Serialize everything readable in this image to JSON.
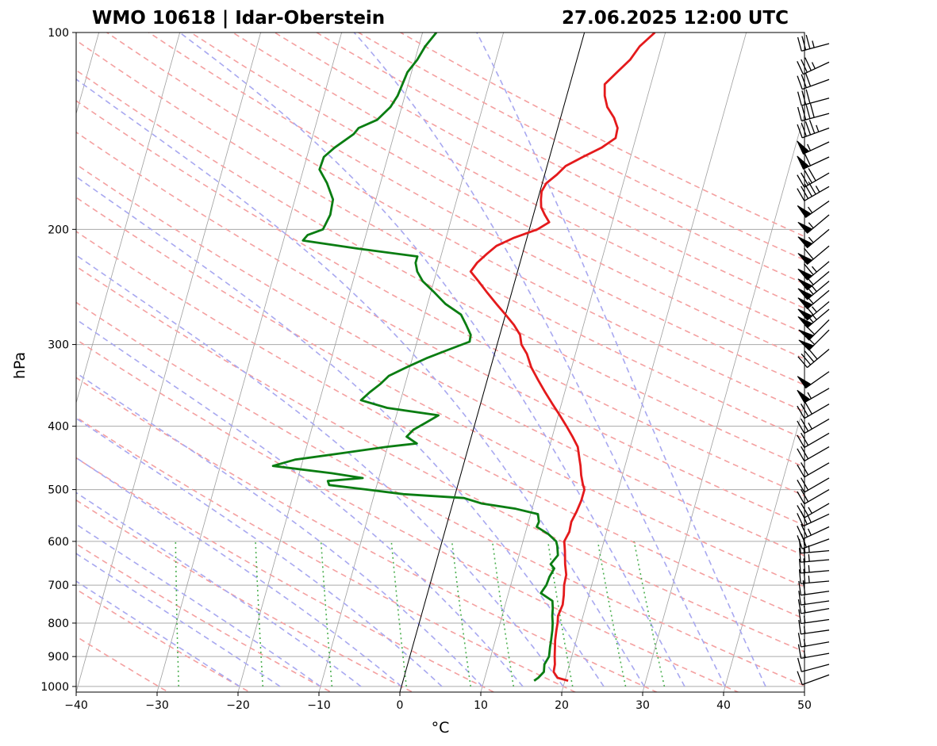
{
  "title_left": "WMO 10618 | Idar-Oberstein",
  "title_right": "27.06.2025 12:00 UTC",
  "colors": {
    "temperature": "#e41a1c",
    "dewpoint": "#0a7d12",
    "dry_adiabats": "#f4a0a0",
    "moist_adiabats": "#a8a8f0",
    "mixing_ratio": "#4caf50",
    "isotherms": "#9e9e9e",
    "isobars": "#aaaaaa",
    "wind_barbs": "#000000"
  },
  "chart_data": {
    "type": "line",
    "diagram": "skew-T log-p",
    "xlabel": "°C",
    "ylabel": "hPa",
    "xlim": [
      -40,
      50
    ],
    "ylim": [
      1020,
      100
    ],
    "y_scale": "log",
    "x_ticks": [
      -40,
      -30,
      -20,
      -10,
      0,
      10,
      20,
      30,
      40,
      50
    ],
    "y_ticks": [
      100,
      200,
      300,
      400,
      500,
      600,
      700,
      800,
      900,
      1000
    ],
    "series": [
      {
        "key": "temperature",
        "points": [
          [
            980,
            20.4
          ],
          [
            970,
            19.0
          ],
          [
            950,
            18.3
          ],
          [
            925,
            18.2
          ],
          [
            900,
            17.9
          ],
          [
            870,
            17.6
          ],
          [
            850,
            17.4
          ],
          [
            820,
            17.2
          ],
          [
            800,
            17.1
          ],
          [
            780,
            16.9
          ],
          [
            750,
            17.1
          ],
          [
            725,
            16.9
          ],
          [
            700,
            16.6
          ],
          [
            675,
            16.5
          ],
          [
            650,
            16.0
          ],
          [
            620,
            15.5
          ],
          [
            600,
            15.1
          ],
          [
            580,
            15.4
          ],
          [
            560,
            15.3
          ],
          [
            540,
            15.6
          ],
          [
            520,
            15.8
          ],
          [
            500,
            15.8
          ],
          [
            490,
            15.4
          ],
          [
            475,
            14.9
          ],
          [
            460,
            14.5
          ],
          [
            445,
            14.0
          ],
          [
            430,
            13.5
          ],
          [
            415,
            12.5
          ],
          [
            400,
            11.4
          ],
          [
            385,
            10.2
          ],
          [
            370,
            8.9
          ],
          [
            355,
            7.6
          ],
          [
            340,
            6.3
          ],
          [
            325,
            5.0
          ],
          [
            310,
            4.0
          ],
          [
            300,
            3.0
          ],
          [
            290,
            2.5
          ],
          [
            280,
            1.4
          ],
          [
            270,
            0.0
          ],
          [
            260,
            -1.5
          ],
          [
            250,
            -3.0
          ],
          [
            240,
            -4.5
          ],
          [
            232,
            -5.8
          ],
          [
            225,
            -5.3
          ],
          [
            218,
            -4.4
          ],
          [
            212,
            -3.5
          ],
          [
            206,
            -1.6
          ],
          [
            200,
            1.0
          ],
          [
            195,
            2.2
          ],
          [
            190,
            1.4
          ],
          [
            185,
            0.7
          ],
          [
            180,
            0.4
          ],
          [
            175,
            0.2
          ],
          [
            170,
            0.5
          ],
          [
            165,
            1.5
          ],
          [
            160,
            2.3
          ],
          [
            155,
            4.1
          ],
          [
            150,
            6.1
          ],
          [
            145,
            7.5
          ],
          [
            140,
            7.4
          ],
          [
            135,
            6.6
          ],
          [
            130,
            5.4
          ],
          [
            125,
            4.7
          ],
          [
            120,
            4.3
          ],
          [
            115,
            5.4
          ],
          [
            110,
            6.6
          ],
          [
            105,
            7.3
          ],
          [
            100,
            8.7
          ]
        ]
      },
      {
        "key": "dewpoint",
        "points": [
          [
            980,
            16.2
          ],
          [
            970,
            16.6
          ],
          [
            950,
            17.1
          ],
          [
            925,
            16.9
          ],
          [
            900,
            17.2
          ],
          [
            870,
            17.0
          ],
          [
            850,
            16.9
          ],
          [
            820,
            16.7
          ],
          [
            800,
            16.5
          ],
          [
            780,
            16.2
          ],
          [
            760,
            16.0
          ],
          [
            740,
            15.7
          ],
          [
            720,
            14.0
          ],
          [
            700,
            14.4
          ],
          [
            680,
            14.5
          ],
          [
            660,
            14.8
          ],
          [
            650,
            14.2
          ],
          [
            630,
            14.8
          ],
          [
            610,
            14.4
          ],
          [
            600,
            14.1
          ],
          [
            585,
            12.9
          ],
          [
            570,
            11.2
          ],
          [
            560,
            11.3
          ],
          [
            545,
            10.9
          ],
          [
            535,
            8.0
          ],
          [
            525,
            3.6
          ],
          [
            515,
            1.2
          ],
          [
            508,
            -6.4
          ],
          [
            500,
            -11.0
          ],
          [
            492,
            -15.9
          ],
          [
            485,
            -16.2
          ],
          [
            480,
            -12.0
          ],
          [
            472,
            -16.0
          ],
          [
            460,
            -23.5
          ],
          [
            450,
            -21.0
          ],
          [
            440,
            -15.5
          ],
          [
            430,
            -10.1
          ],
          [
            425,
            -6.5
          ],
          [
            415,
            -8.0
          ],
          [
            405,
            -7.4
          ],
          [
            395,
            -6.1
          ],
          [
            385,
            -4.8
          ],
          [
            375,
            -11.4
          ],
          [
            365,
            -14.9
          ],
          [
            355,
            -14.1
          ],
          [
            345,
            -13.1
          ],
          [
            335,
            -12.3
          ],
          [
            325,
            -10.4
          ],
          [
            315,
            -8.3
          ],
          [
            305,
            -5.7
          ],
          [
            297,
            -3.5
          ],
          [
            290,
            -3.6
          ],
          [
            280,
            -4.5
          ],
          [
            270,
            -5.5
          ],
          [
            260,
            -7.8
          ],
          [
            250,
            -9.5
          ],
          [
            240,
            -11.4
          ],
          [
            232,
            -12.4
          ],
          [
            225,
            -12.9
          ],
          [
            220,
            -12.9
          ],
          [
            214,
            -20.5
          ],
          [
            208,
            -27.6
          ],
          [
            204,
            -27.2
          ],
          [
            200,
            -25.5
          ],
          [
            190,
            -25.1
          ],
          [
            180,
            -25.3
          ],
          [
            170,
            -26.6
          ],
          [
            162,
            -28.0
          ],
          [
            155,
            -27.9
          ],
          [
            150,
            -26.9
          ],
          [
            143,
            -25.0
          ],
          [
            140,
            -24.6
          ],
          [
            136,
            -22.6
          ],
          [
            130,
            -21.4
          ],
          [
            125,
            -20.9
          ],
          [
            120,
            -20.7
          ],
          [
            115,
            -20.5
          ],
          [
            110,
            -19.7
          ],
          [
            105,
            -19.2
          ],
          [
            100,
            -18.3
          ]
        ]
      }
    ],
    "wind_barbs": [
      {
        "p": 960,
        "dir": 250,
        "spd": 10
      },
      {
        "p": 925,
        "dir": 255,
        "spd": 10
      },
      {
        "p": 890,
        "dir": 260,
        "spd": 15
      },
      {
        "p": 855,
        "dir": 260,
        "spd": 15
      },
      {
        "p": 820,
        "dir": 262,
        "spd": 15
      },
      {
        "p": 790,
        "dir": 262,
        "spd": 15
      },
      {
        "p": 760,
        "dir": 260,
        "spd": 15
      },
      {
        "p": 740,
        "dir": 262,
        "spd": 15
      },
      {
        "p": 715,
        "dir": 262,
        "spd": 20
      },
      {
        "p": 690,
        "dir": 265,
        "spd": 25
      },
      {
        "p": 665,
        "dir": 265,
        "spd": 25
      },
      {
        "p": 640,
        "dir": 265,
        "spd": 25
      },
      {
        "p": 620,
        "dir": 265,
        "spd": 25
      },
      {
        "p": 595,
        "dir": 250,
        "spd": 20
      },
      {
        "p": 570,
        "dir": 245,
        "spd": 25
      },
      {
        "p": 545,
        "dir": 245,
        "spd": 25
      },
      {
        "p": 525,
        "dir": 240,
        "spd": 25
      },
      {
        "p": 500,
        "dir": 240,
        "spd": 20
      },
      {
        "p": 480,
        "dir": 240,
        "spd": 20
      },
      {
        "p": 455,
        "dir": 240,
        "spd": 20
      },
      {
        "p": 430,
        "dir": 240,
        "spd": 20
      },
      {
        "p": 410,
        "dir": 240,
        "spd": 20
      },
      {
        "p": 390,
        "dir": 240,
        "spd": 25
      },
      {
        "p": 370,
        "dir": 240,
        "spd": 30
      },
      {
        "p": 350,
        "dir": 240,
        "spd": 55
      },
      {
        "p": 330,
        "dir": 235,
        "spd": 50
      },
      {
        "p": 305,
        "dir": 230,
        "spd": 40
      },
      {
        "p": 285,
        "dir": 225,
        "spd": 55
      },
      {
        "p": 275,
        "dir": 225,
        "spd": 60
      },
      {
        "p": 265,
        "dir": 230,
        "spd": 65
      },
      {
        "p": 258,
        "dir": 230,
        "spd": 65
      },
      {
        "p": 248,
        "dir": 230,
        "spd": 60
      },
      {
        "p": 240,
        "dir": 230,
        "spd": 65
      },
      {
        "p": 232,
        "dir": 230,
        "spd": 60
      },
      {
        "p": 224,
        "dir": 230,
        "spd": 65
      },
      {
        "p": 212,
        "dir": 230,
        "spd": 60
      },
      {
        "p": 200,
        "dir": 230,
        "spd": 55
      },
      {
        "p": 190,
        "dir": 230,
        "spd": 55
      },
      {
        "p": 181,
        "dir": 235,
        "spd": 55
      },
      {
        "p": 172,
        "dir": 240,
        "spd": 45
      },
      {
        "p": 164,
        "dir": 240,
        "spd": 40
      },
      {
        "p": 155,
        "dir": 245,
        "spd": 60
      },
      {
        "p": 147,
        "dir": 245,
        "spd": 55
      },
      {
        "p": 140,
        "dir": 250,
        "spd": 45
      },
      {
        "p": 133,
        "dir": 255,
        "spd": 40
      },
      {
        "p": 126,
        "dir": 255,
        "spd": 30
      },
      {
        "p": 118,
        "dir": 250,
        "spd": 30
      },
      {
        "p": 111,
        "dir": 245,
        "spd": 35
      },
      {
        "p": 104,
        "dir": 255,
        "spd": 35
      }
    ],
    "dry_adiabats_theta_c": [
      -30,
      -20,
      -10,
      0,
      10,
      20,
      30,
      40,
      50,
      60,
      70,
      80,
      90,
      100,
      110,
      120,
      130,
      140,
      150,
      160,
      170,
      180,
      190,
      200,
      210
    ],
    "moist_adiabats_start_t_c": [
      -20,
      -15,
      -10,
      -5,
      0,
      5,
      10,
      15,
      20,
      25,
      30,
      35,
      40,
      45
    ],
    "mixing_ratio_g_per_kg": [
      0.4,
      1,
      2,
      4,
      7,
      10,
      16,
      24,
      32
    ],
    "isotherms_c": [
      -150,
      -140,
      -130,
      -120,
      -110,
      -100,
      -90,
      -80,
      -70,
      -60,
      -50,
      -40,
      -30,
      -20,
      -10,
      0,
      10,
      20,
      30,
      40,
      50
    ],
    "highlighted_isotherm_c": 0
  }
}
